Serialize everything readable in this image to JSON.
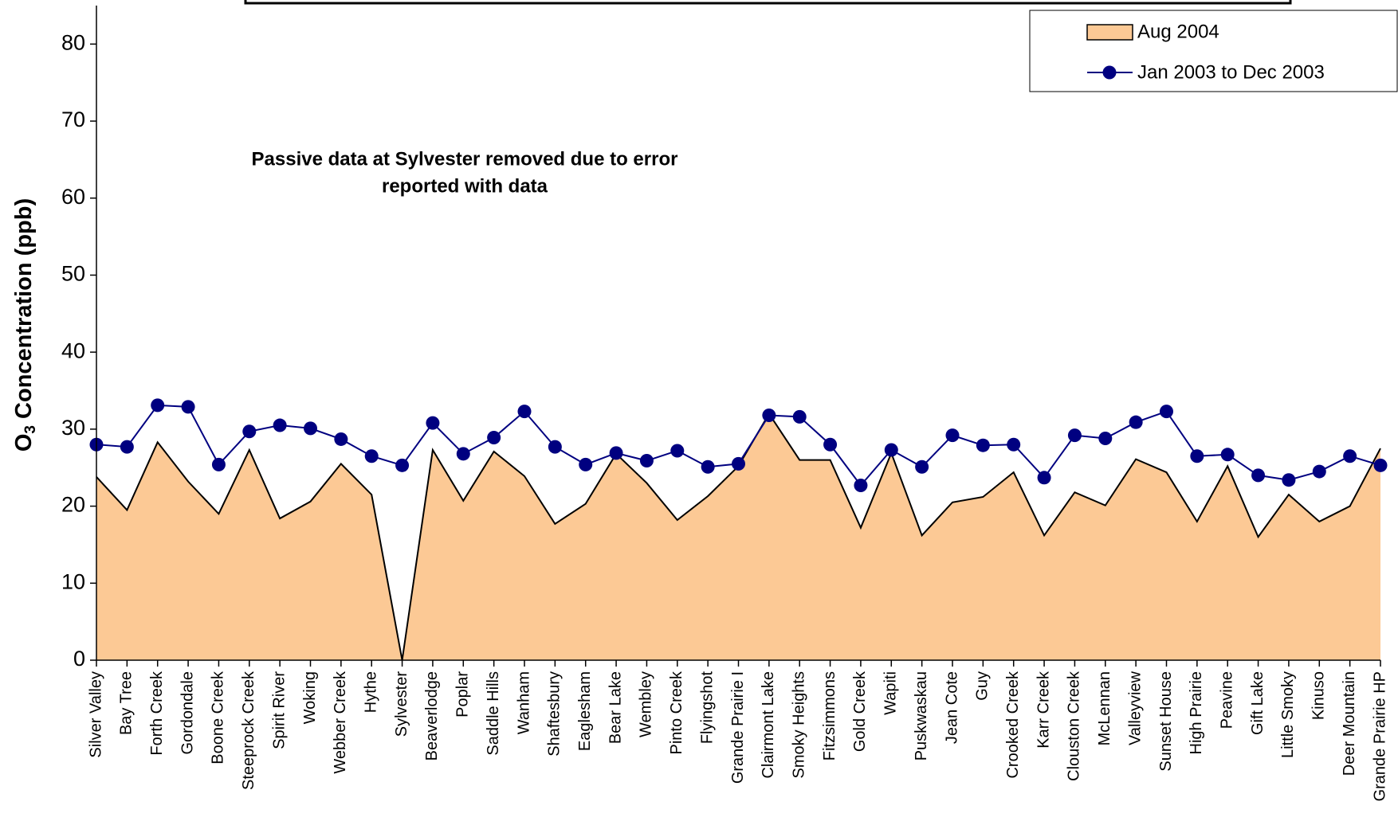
{
  "chart_data": {
    "type": "area_line",
    "annotation": [
      "Passive data at Sylvester removed due to error",
      "reported with data"
    ],
    "ylabel": {
      "main": "O",
      "sub": "3",
      "rest": " Concentration  (ppb)"
    },
    "categories": [
      "Silver Valley",
      "Bay Tree",
      "Forth Creek",
      "Gordondale",
      "Boone Creek",
      "Steeprock Creek",
      "Spirit River",
      "Woking",
      "Webber Creek",
      "Hythe",
      "Sylvester",
      "Beaverlodge",
      "Poplar",
      "Saddle Hills",
      "Wanham",
      "Shaftesbury",
      "Eaglesham",
      "Bear Lake",
      "Wembley",
      "Pinto Creek",
      "Flyingshot",
      "Grande Prairie I",
      "Clairmont Lake",
      "Smoky Heights",
      "Fitzsimmons",
      "Gold Creek",
      "Wapiti",
      "Puskwaskau",
      "Jean Cote",
      "Guy",
      "Crooked Creek",
      "Karr Creek",
      "Clouston Creek",
      "McLennan",
      "Valleyview",
      "Sunset House",
      "High Prairie",
      "Peavine",
      "Gift Lake",
      "Little Smoky",
      "Kinuso",
      "Deer Mountain",
      "Grande Prairie HP"
    ],
    "series": [
      {
        "name": "Aug 2004",
        "kind": "area",
        "color": "#fcc995",
        "values": [
          23.8,
          19.5,
          28.3,
          23.2,
          19,
          27.3,
          18.4,
          20.6,
          25.5,
          21.5,
          0,
          27.3,
          20.7,
          27.1,
          23.9,
          17.7,
          20.3,
          26.8,
          23,
          18.2,
          21.3,
          25.2,
          32,
          26,
          26,
          17.2,
          26.9,
          16.2,
          20.5,
          21.2,
          24.4,
          16.2,
          21.8,
          20.1,
          26.1,
          24.4,
          18,
          25.2,
          16,
          21.5,
          18,
          20,
          27.5
        ]
      },
      {
        "name": "Jan 2003 to Dec 2003",
        "kind": "line",
        "color": "#000080",
        "values": [
          28,
          27.7,
          33.1,
          32.9,
          25.4,
          29.7,
          30.5,
          30.1,
          28.7,
          26.5,
          25.3,
          30.8,
          26.8,
          28.9,
          32.3,
          27.7,
          25.4,
          26.9,
          25.9,
          27.2,
          25.1,
          25.5,
          31.8,
          31.6,
          28,
          22.7,
          27.3,
          25.1,
          29.2,
          27.9,
          28,
          23.7,
          29.2,
          28.8,
          30.9,
          32.3,
          26.5,
          26.7,
          24,
          23.4,
          24.5,
          26.5,
          25.3
        ]
      }
    ],
    "ylim": [
      0,
      85
    ],
    "yticks": [
      0,
      10,
      20,
      30,
      40,
      50,
      60,
      70,
      80
    ]
  }
}
